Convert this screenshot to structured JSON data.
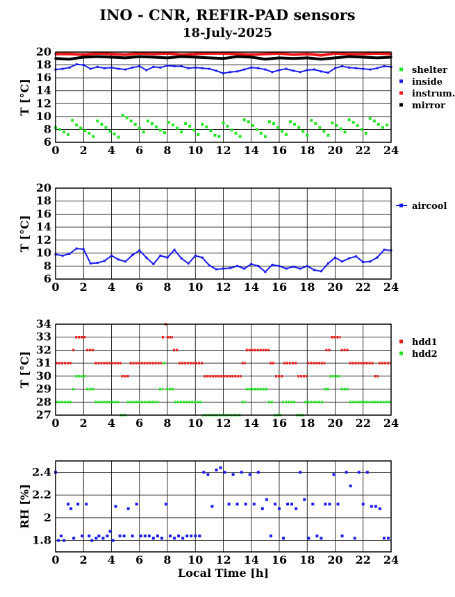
{
  "title": "INO - CNR, REFIR-PAD sensors",
  "subtitle": "18-July-2025",
  "chart_data": [
    {
      "type": "scatter",
      "ylabel": "T [°C]",
      "xlim": [
        0,
        24
      ],
      "ylim": [
        6,
        20
      ],
      "xticks": [
        0,
        2,
        4,
        6,
        8,
        10,
        12,
        14,
        16,
        18,
        20,
        22,
        24
      ],
      "yticks": [
        6,
        8,
        10,
        12,
        14,
        16,
        18,
        20
      ],
      "grid": true,
      "legend_position": "right",
      "series": [
        {
          "name": "shelter",
          "color": "#22e622",
          "style": "points",
          "x": [
            0,
            0.3,
            0.6,
            0.9,
            1.2,
            1.5,
            1.8,
            2.1,
            2.4,
            2.7,
            3.0,
            3.3,
            3.6,
            3.9,
            4.2,
            4.5,
            4.8,
            5.1,
            5.4,
            5.7,
            6.0,
            6.3,
            6.6,
            6.9,
            7.2,
            7.5,
            7.8,
            8.1,
            8.4,
            8.7,
            9.0,
            9.3,
            9.6,
            9.9,
            10.2,
            10.5,
            10.8,
            11.1,
            11.4,
            11.7,
            12.0,
            12.3,
            12.6,
            12.9,
            13.2,
            13.5,
            13.8,
            14.1,
            14.4,
            14.7,
            15.0,
            15.3,
            15.6,
            15.9,
            16.2,
            16.5,
            16.8,
            17.1,
            17.4,
            17.7,
            18.0,
            18.3,
            18.6,
            18.9,
            19.2,
            19.5,
            19.8,
            20.1,
            20.4,
            20.7,
            21.0,
            21.3,
            21.6,
            21.9,
            22.2,
            22.5,
            22.8,
            23.1,
            23.4,
            23.7
          ],
          "y": [
            8.3,
            8.0,
            7.6,
            7.2,
            9.4,
            8.7,
            8.2,
            7.8,
            7.4,
            6.9,
            9.3,
            8.8,
            8.3,
            7.7,
            7.3,
            6.8,
            10.2,
            9.8,
            9.3,
            8.8,
            8.2,
            7.6,
            9.3,
            8.9,
            8.4,
            7.9,
            7.5,
            9.1,
            8.7,
            8.2,
            7.6,
            8.9,
            8.5,
            7.9,
            7.2,
            8.8,
            8.4,
            7.8,
            7.1,
            6.9,
            9.0,
            8.5,
            7.9,
            7.4,
            6.9,
            9.5,
            9.2,
            8.6,
            8.0,
            7.4,
            6.9,
            9.2,
            8.9,
            8.3,
            7.7,
            7.2,
            9.2,
            8.8,
            8.3,
            7.7,
            7.1,
            9.4,
            8.9,
            8.3,
            7.7,
            7.1,
            9.0,
            8.6,
            8.1,
            7.6,
            9.5,
            9.1,
            8.6,
            8.0,
            7.4,
            9.7,
            9.3,
            8.8,
            8.3,
            8.7
          ]
        },
        {
          "name": "inside",
          "color": "#1a1aee",
          "style": "line",
          "x": [
            0,
            0.5,
            1.0,
            1.5,
            2.0,
            2.5,
            3.0,
            3.5,
            4.0,
            4.5,
            5.0,
            5.5,
            6.0,
            6.5,
            7.0,
            7.5,
            8.0,
            8.5,
            9.0,
            9.5,
            10.0,
            10.5,
            11.0,
            11.5,
            12.0,
            12.5,
            13.0,
            13.5,
            14.0,
            14.5,
            15.0,
            15.5,
            16.0,
            16.5,
            17.0,
            17.5,
            18.0,
            18.5,
            19.0,
            19.5,
            20.0,
            20.5,
            21.0,
            21.5,
            22.0,
            22.5,
            23.0,
            23.5,
            24
          ],
          "y": [
            17.3,
            17.4,
            17.6,
            18.1,
            18.0,
            17.4,
            17.7,
            17.5,
            17.6,
            17.4,
            17.3,
            17.6,
            17.8,
            17.2,
            17.7,
            17.6,
            17.9,
            17.8,
            17.8,
            17.5,
            17.6,
            17.5,
            17.4,
            17.1,
            16.7,
            16.9,
            17.0,
            17.3,
            17.6,
            17.5,
            17.3,
            16.9,
            17.2,
            17.4,
            17.1,
            16.9,
            17.2,
            17.3,
            17.0,
            16.8,
            17.5,
            17.8,
            17.6,
            17.5,
            17.4,
            17.3,
            17.5,
            17.8,
            17.7
          ]
        },
        {
          "name": "instrum.",
          "color": "#ee1a1a",
          "style": "line",
          "x": [
            0,
            1,
            2,
            3,
            4,
            5,
            6,
            7,
            8,
            9,
            10,
            11,
            12,
            13,
            14,
            15,
            16,
            17,
            18,
            19,
            20,
            21,
            22,
            23,
            24
          ],
          "y": [
            19.7,
            19.7,
            19.6,
            19.8,
            19.7,
            19.6,
            19.8,
            19.7,
            19.8,
            19.6,
            19.7,
            19.8,
            19.8,
            19.7,
            19.6,
            19.7,
            19.8,
            19.6,
            19.7,
            19.5,
            19.8,
            19.7,
            19.7,
            19.8,
            19.7
          ]
        },
        {
          "name": "mirror",
          "color": "#000000",
          "style": "line",
          "x": [
            0,
            1,
            2,
            3,
            4,
            5,
            6,
            7,
            8,
            9,
            10,
            11,
            12,
            13,
            14,
            15,
            16,
            17,
            18,
            19,
            20,
            21,
            22,
            23,
            24
          ],
          "y": [
            19.0,
            18.9,
            19.2,
            19.3,
            19.2,
            19.1,
            19.3,
            19.2,
            19.1,
            19.3,
            19.2,
            19.1,
            19.0,
            19.3,
            19.2,
            18.9,
            19.1,
            19.0,
            19.1,
            18.9,
            19.1,
            19.3,
            19.2,
            19.1,
            19.2
          ]
        }
      ]
    },
    {
      "type": "line",
      "ylabel": "T [°C]",
      "xlim": [
        0,
        24
      ],
      "ylim": [
        6,
        20
      ],
      "xticks": [
        0,
        2,
        4,
        6,
        8,
        10,
        12,
        14,
        16,
        18,
        20,
        22,
        24
      ],
      "yticks": [
        6,
        8,
        10,
        12,
        14,
        16,
        18,
        20
      ],
      "grid": true,
      "legend_position": "top-right",
      "series": [
        {
          "name": "aircool",
          "color": "#1a1aee",
          "style": "line",
          "x": [
            0,
            0.5,
            1.0,
            1.5,
            2.0,
            2.5,
            3.0,
            3.5,
            4.0,
            4.5,
            5.0,
            5.5,
            6.0,
            6.5,
            7.0,
            7.5,
            8.0,
            8.5,
            9.0,
            9.5,
            10.0,
            10.5,
            11.0,
            11.5,
            12.0,
            12.5,
            13.0,
            13.5,
            14.0,
            14.5,
            15.0,
            15.5,
            16.0,
            16.5,
            17.0,
            17.5,
            18.0,
            18.5,
            19.0,
            19.5,
            20.0,
            20.5,
            21.0,
            21.5,
            22.0,
            22.5,
            23.0,
            23.5,
            24
          ],
          "y": [
            9.8,
            9.6,
            9.9,
            10.7,
            10.6,
            8.4,
            8.5,
            8.8,
            9.6,
            9.0,
            8.7,
            9.7,
            10.4,
            9.3,
            8.3,
            9.6,
            9.3,
            10.5,
            9.2,
            8.4,
            9.6,
            9.3,
            8.1,
            7.5,
            7.6,
            7.7,
            8.0,
            7.6,
            8.3,
            8.0,
            7.1,
            8.2,
            8.0,
            7.6,
            7.9,
            7.6,
            8.0,
            7.4,
            7.2,
            8.4,
            9.3,
            8.7,
            9.2,
            9.5,
            8.6,
            8.7,
            9.3,
            10.5,
            10.4
          ]
        }
      ]
    },
    {
      "type": "scatter",
      "ylabel": "T [°C]",
      "xlim": [
        0,
        24
      ],
      "ylim": [
        27,
        34
      ],
      "xticks": [
        0,
        2,
        4,
        6,
        8,
        10,
        12,
        14,
        16,
        18,
        20,
        22,
        24
      ],
      "yticks": [
        27,
        28,
        29,
        30,
        31,
        32,
        33,
        34
      ],
      "grid": true,
      "legend_position": "right",
      "series": [
        {
          "name": "hdd1",
          "color": "#ee1a1a",
          "style": "segments",
          "segments": [
            [
              0,
              1.2,
              31
            ],
            [
              1.2,
              1.4,
              32
            ],
            [
              1.4,
              2.2,
              33
            ],
            [
              2.2,
              2.8,
              32
            ],
            [
              2.8,
              4.7,
              31
            ],
            [
              4.7,
              5.3,
              30
            ],
            [
              5.3,
              7.6,
              31
            ],
            [
              7.6,
              7.8,
              33
            ],
            [
              7.8,
              7.95,
              34
            ],
            [
              7.95,
              8.4,
              33
            ],
            [
              8.4,
              8.8,
              32
            ],
            [
              8.8,
              10.6,
              31
            ],
            [
              10.6,
              13.3,
              30
            ],
            [
              13.3,
              13.6,
              31
            ],
            [
              13.6,
              15.3,
              32
            ],
            [
              15.3,
              15.7,
              31
            ],
            [
              15.7,
              16.3,
              30
            ],
            [
              16.3,
              17.3,
              31
            ],
            [
              17.3,
              18.0,
              30
            ],
            [
              18.0,
              19.3,
              31
            ],
            [
              19.3,
              19.7,
              32
            ],
            [
              19.7,
              20.4,
              33
            ],
            [
              20.4,
              21.0,
              32
            ],
            [
              21.0,
              22.8,
              31
            ],
            [
              22.8,
              23.1,
              30
            ],
            [
              23.1,
              24,
              31
            ]
          ]
        },
        {
          "name": "hdd2",
          "color": "#22e622",
          "style": "segments",
          "segments": [
            [
              0,
              1.2,
              28
            ],
            [
              1.2,
              1.4,
              29
            ],
            [
              1.4,
              2.2,
              30
            ],
            [
              2.2,
              2.8,
              29
            ],
            [
              2.8,
              4.6,
              28
            ],
            [
              4.6,
              5.1,
              27
            ],
            [
              5.1,
              7.4,
              28
            ],
            [
              7.4,
              7.7,
              29
            ],
            [
              7.7,
              7.9,
              31
            ],
            [
              7.9,
              8.5,
              29
            ],
            [
              8.5,
              10.5,
              28
            ],
            [
              10.5,
              13.3,
              27
            ],
            [
              13.3,
              13.6,
              28
            ],
            [
              13.6,
              15.2,
              29
            ],
            [
              15.2,
              15.6,
              28
            ],
            [
              15.6,
              16.2,
              27
            ],
            [
              16.2,
              17.2,
              28
            ],
            [
              17.2,
              17.8,
              27
            ],
            [
              17.8,
              19.2,
              28
            ],
            [
              19.2,
              19.6,
              29
            ],
            [
              19.6,
              20.4,
              30
            ],
            [
              20.4,
              21.0,
              29
            ],
            [
              21.0,
              24,
              28
            ]
          ]
        }
      ]
    },
    {
      "type": "scatter",
      "ylabel": "RH [%]",
      "xlabel": "Local Time [h]",
      "xlim": [
        0,
        24
      ],
      "ylim": [
        1.7,
        2.5
      ],
      "xticks": [
        0,
        2,
        4,
        6,
        8,
        10,
        12,
        14,
        16,
        18,
        20,
        22,
        24
      ],
      "yticks": [
        1.8,
        2.0,
        2.2,
        2.4
      ],
      "ytick_labels": [
        "1.8",
        "2",
        "2.2",
        "2.4"
      ],
      "grid": true,
      "legend_position": "none",
      "series": [
        {
          "name": "",
          "color": "#1a1aee",
          "style": "points",
          "x": [
            0,
            0.2,
            0.4,
            0.6,
            0.9,
            1.1,
            1.3,
            1.6,
            1.9,
            2.2,
            2.4,
            2.6,
            2.9,
            3.1,
            3.4,
            3.7,
            3.9,
            4.1,
            4.3,
            4.6,
            4.9,
            5.2,
            5.5,
            5.8,
            6.1,
            6.4,
            6.7,
            7.0,
            7.3,
            7.6,
            7.9,
            8.2,
            8.5,
            8.8,
            9.1,
            9.4,
            9.7,
            10.0,
            10.3,
            10.6,
            10.9,
            11.2,
            11.5,
            11.8,
            12.1,
            12.4,
            12.7,
            13.0,
            13.3,
            13.6,
            13.9,
            14.2,
            14.5,
            14.8,
            15.1,
            15.4,
            15.7,
            16.0,
            16.3,
            16.6,
            16.9,
            17.2,
            17.5,
            17.8,
            18.1,
            18.4,
            18.7,
            19.0,
            19.3,
            19.6,
            19.9,
            20.2,
            20.5,
            20.8,
            21.1,
            21.4,
            21.7,
            22.0,
            22.3,
            22.6,
            22.9,
            23.2,
            23.5,
            23.8
          ],
          "y": [
            2.4,
            1.8,
            1.84,
            1.8,
            2.12,
            2.08,
            1.82,
            2.12,
            1.84,
            2.12,
            1.84,
            1.8,
            1.82,
            1.84,
            1.82,
            1.84,
            1.88,
            1.8,
            2.1,
            1.84,
            1.84,
            2.08,
            1.84,
            2.12,
            1.84,
            1.84,
            1.84,
            1.82,
            1.84,
            1.82,
            2.12,
            1.84,
            1.82,
            1.84,
            1.82,
            1.84,
            1.84,
            1.84,
            1.84,
            2.4,
            2.38,
            2.1,
            2.42,
            2.44,
            2.4,
            2.12,
            2.38,
            2.12,
            2.4,
            2.12,
            2.38,
            2.12,
            2.4,
            2.08,
            2.16,
            1.84,
            2.12,
            2.08,
            1.82,
            2.12,
            2.12,
            2.08,
            2.4,
            2.16,
            1.82,
            2.12,
            1.84,
            1.82,
            2.12,
            2.12,
            2.38,
            2.12,
            1.84,
            2.4,
            2.28,
            1.82,
            2.4,
            2.12,
            2.4,
            2.1,
            2.1,
            2.08,
            1.82,
            1.82
          ]
        }
      ]
    }
  ]
}
